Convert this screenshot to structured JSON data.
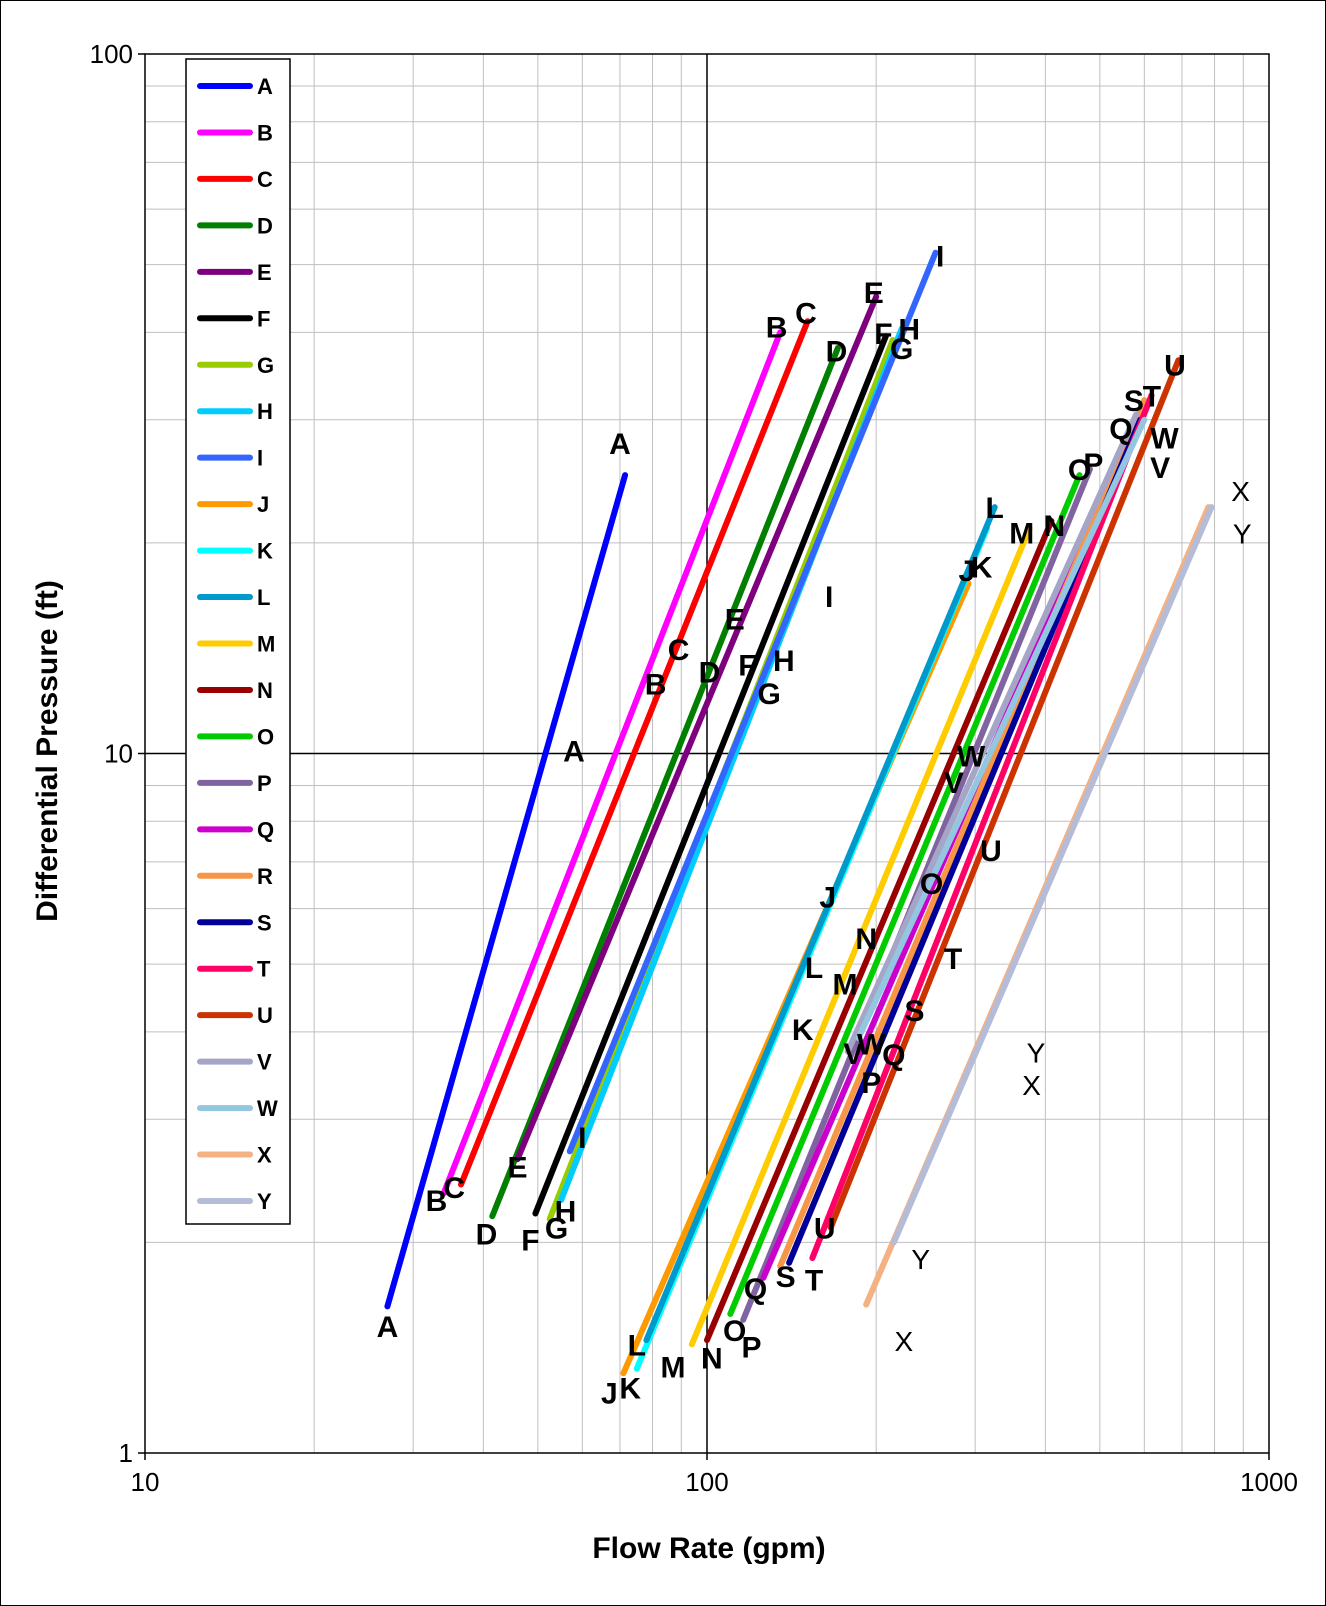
{
  "chart_data": {
    "type": "line",
    "title": "",
    "xlabel": "Flow Rate (gpm)",
    "ylabel": "Differential Pressure  (ft)",
    "x_scale": "log",
    "y_scale": "log",
    "xlim": [
      10,
      1000
    ],
    "ylim": [
      1,
      100
    ],
    "x_ticks": [
      "10",
      "100",
      "1000"
    ],
    "y_ticks": [
      "1",
      "10",
      "100"
    ],
    "grid": true,
    "legend_position": "top-left",
    "series": [
      {
        "name": "A",
        "color": "#0000FF",
        "x": [
          27,
          71.5
        ],
        "y": [
          1.62,
          25
        ],
        "labels": [
          {
            "x": 27,
            "y": 1.52
          },
          {
            "x": 58,
            "y": 10.1
          },
          {
            "x": 70,
            "y": 27.8
          }
        ]
      },
      {
        "name": "B",
        "color": "#FF00FF",
        "x": [
          34,
          135
        ],
        "y": [
          2.35,
          40
        ],
        "labels": [
          {
            "x": 33,
            "y": 2.3
          },
          {
            "x": 81,
            "y": 12.6
          },
          {
            "x": 133,
            "y": 40.8
          }
        ]
      },
      {
        "name": "C",
        "color": "#FF0000",
        "x": [
          36.5,
          151
        ],
        "y": [
          2.42,
          41.5
        ],
        "labels": [
          {
            "x": 35.5,
            "y": 2.4
          },
          {
            "x": 89,
            "y": 14.1
          },
          {
            "x": 150,
            "y": 42.7
          }
        ]
      },
      {
        "name": "D",
        "color": "#007F00",
        "x": [
          41.5,
          171
        ],
        "y": [
          2.18,
          38
        ],
        "labels": [
          {
            "x": 40.5,
            "y": 2.06
          },
          {
            "x": 101,
            "y": 13.1
          },
          {
            "x": 170,
            "y": 37.7
          }
        ]
      },
      {
        "name": "E",
        "color": "#7F007F",
        "x": [
          46,
          200
        ],
        "y": [
          2.63,
          45
        ],
        "labels": [
          {
            "x": 46,
            "y": 2.57
          },
          {
            "x": 112,
            "y": 15.6
          },
          {
            "x": 198,
            "y": 45.7
          }
        ]
      },
      {
        "name": "F",
        "color": "#000000",
        "x": [
          49.5,
          208
        ],
        "y": [
          2.2,
          39.5
        ],
        "labels": [
          {
            "x": 48.5,
            "y": 2.02
          },
          {
            "x": 118,
            "y": 13.4
          },
          {
            "x": 206,
            "y": 39.9
          }
        ]
      },
      {
        "name": "G",
        "color": "#99CC00",
        "x": [
          52.5,
          214
        ],
        "y": [
          2.16,
          39
        ],
        "labels": [
          {
            "x": 54,
            "y": 2.1
          },
          {
            "x": 129,
            "y": 12.2
          },
          {
            "x": 222,
            "y": 38
          }
        ]
      },
      {
        "name": "H",
        "color": "#00CCFF",
        "x": [
          55,
          222
        ],
        "y": [
          2.3,
          40.5
        ],
        "labels": [
          {
            "x": 56,
            "y": 2.22
          },
          {
            "x": 137,
            "y": 13.6
          },
          {
            "x": 229,
            "y": 40.5
          }
        ]
      },
      {
        "name": "I",
        "color": "#3366FF",
        "x": [
          57,
          255
        ],
        "y": [
          2.7,
          52
        ],
        "labels": [
          {
            "x": 60,
            "y": 2.83
          },
          {
            "x": 165,
            "y": 16.8
          },
          {
            "x": 260,
            "y": 51.5
          }
        ]
      },
      {
        "name": "J",
        "color": "#FF9900",
        "x": [
          71,
          292
        ],
        "y": [
          1.3,
          17.5
        ],
        "labels": [
          {
            "x": 67,
            "y": 1.22
          },
          {
            "x": 164,
            "y": 6.25
          },
          {
            "x": 290,
            "y": 18.3
          }
        ]
      },
      {
        "name": "K",
        "color": "#00FFFF",
        "x": [
          75,
          315
        ],
        "y": [
          1.32,
          21
        ],
        "labels": [
          {
            "x": 73,
            "y": 1.24
          },
          {
            "x": 148,
            "y": 4.04
          },
          {
            "x": 308,
            "y": 18.5
          }
        ]
      },
      {
        "name": "L",
        "color": "#0099CC",
        "x": [
          78,
          325
        ],
        "y": [
          1.45,
          22.5
        ],
        "labels": [
          {
            "x": 75,
            "y": 1.43
          },
          {
            "x": 155,
            "y": 4.95
          },
          {
            "x": 325,
            "y": 22.5
          }
        ]
      },
      {
        "name": "M",
        "color": "#FFCC00",
        "x": [
          94,
          375
        ],
        "y": [
          1.43,
          21
        ],
        "labels": [
          {
            "x": 87,
            "y": 1.33
          },
          {
            "x": 176,
            "y": 4.69
          },
          {
            "x": 363,
            "y": 20.7
          }
        ]
      },
      {
        "name": "N",
        "color": "#990000",
        "x": [
          100,
          410
        ],
        "y": [
          1.45,
          21.5
        ],
        "labels": [
          {
            "x": 102,
            "y": 1.37
          },
          {
            "x": 192,
            "y": 5.45
          },
          {
            "x": 415,
            "y": 21.2
          }
        ]
      },
      {
        "name": "O",
        "color": "#00CC00",
        "x": [
          110,
          460
        ],
        "y": [
          1.58,
          25
        ],
        "labels": [
          {
            "x": 112,
            "y": 1.5
          },
          {
            "x": 251,
            "y": 6.53
          },
          {
            "x": 460,
            "y": 25.5
          }
        ]
      },
      {
        "name": "P",
        "color": "#8064A2",
        "x": [
          116,
          480
        ],
        "y": [
          1.55,
          25.5
        ],
        "labels": [
          {
            "x": 120,
            "y": 1.42
          },
          {
            "x": 196,
            "y": 3.39
          },
          {
            "x": 487,
            "y": 26
          }
        ]
      },
      {
        "name": "Q",
        "color": "#CC00CC",
        "x": [
          126,
          565
        ],
        "y": [
          1.78,
          29
        ],
        "labels": [
          {
            "x": 122,
            "y": 1.72
          },
          {
            "x": 215,
            "y": 3.72
          },
          {
            "x": 545,
            "y": 29.2
          }
        ]
      },
      {
        "name": "R",
        "color": "#F79646",
        "x": [
          135,
          600
        ],
        "y": [
          1.85,
          32
        ],
        "labels": []
      },
      {
        "name": "S",
        "color": "#000099",
        "x": [
          140,
          590
        ],
        "y": [
          1.87,
          30
        ],
        "labels": [
          {
            "x": 138,
            "y": 1.79
          },
          {
            "x": 234,
            "y": 4.3
          },
          {
            "x": 575,
            "y": 32
          }
        ]
      },
      {
        "name": "T",
        "color": "#FF0066",
        "x": [
          154,
          618
        ],
        "y": [
          1.9,
          32.5
        ],
        "labels": [
          {
            "x": 155,
            "y": 1.77
          },
          {
            "x": 274,
            "y": 5.1
          },
          {
            "x": 619,
            "y": 32.5
          }
        ]
      },
      {
        "name": "U",
        "color": "#CC3300",
        "x": [
          166,
          690
        ],
        "y": [
          2.1,
          36.5
        ],
        "labels": [
          {
            "x": 162,
            "y": 2.1
          },
          {
            "x": 320,
            "y": 7.28
          },
          {
            "x": 680,
            "y": 36
          }
        ]
      },
      {
        "name": "V",
        "color": "#A5A5C8",
        "x": [
          178,
          580
        ],
        "y": [
          3.75,
          30.5
        ],
        "labels": [
          {
            "x": 182,
            "y": 3.73
          },
          {
            "x": 275,
            "y": 9.1
          },
          {
            "x": 640,
            "y": 25.7
          }
        ]
      },
      {
        "name": "W",
        "color": "#93C6E0",
        "x": [
          186,
          600
        ],
        "y": [
          3.92,
          30
        ],
        "labels": [
          {
            "x": 196,
            "y": 3.85
          },
          {
            "x": 295,
            "y": 9.93
          },
          {
            "x": 652,
            "y": 28.3
          }
        ]
      },
      {
        "name": "X",
        "color": "#F4B183",
        "x": [
          192,
          780
        ],
        "y": [
          1.63,
          22.5
        ],
        "labels": [
          {
            "x": 224,
            "y": 1.45
          },
          {
            "x": 378,
            "y": 3.37
          },
          {
            "x": 890,
            "y": 23.8
          }
        ]
      },
      {
        "name": "Y",
        "color": "#B4BCD8",
        "x": [
          215,
          790
        ],
        "y": [
          2.0,
          22.5
        ],
        "labels": [
          {
            "x": 240,
            "y": 1.9
          },
          {
            "x": 385,
            "y": 3.75
          },
          {
            "x": 896,
            "y": 20.7
          }
        ]
      }
    ]
  }
}
